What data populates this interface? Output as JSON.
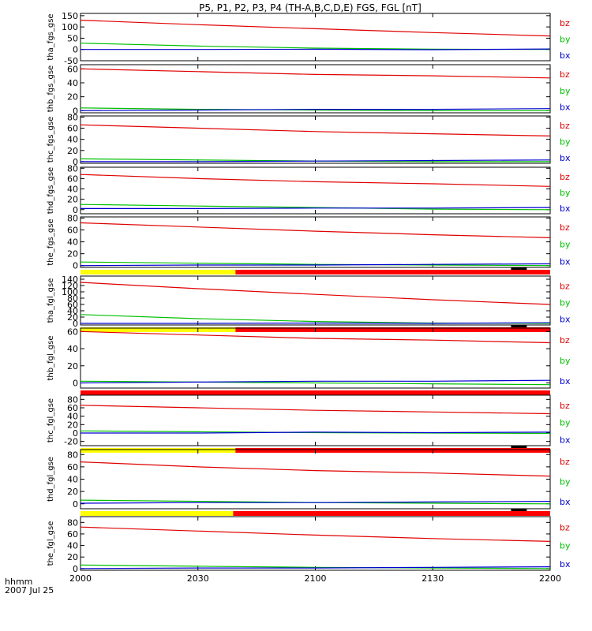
{
  "title": "P5, P1, P2, P3, P4 (TH-A,B,C,D,E) FGS, FGL [nT]",
  "time_axis": {
    "row1_label": "hhmm",
    "row2_label": "2007 Jul 25",
    "tick_labels": [
      "2000",
      "2030",
      "2100",
      "2130",
      "2200"
    ],
    "range_hours": [
      20.0,
      22.0
    ]
  },
  "legend_colors": {
    "bz": "#e00000",
    "by": "#00c000",
    "bx": "#0000d0"
  },
  "mode_colors": {
    "slow": "#ffff00",
    "fast": "#ff0000",
    "marker": "#000000"
  },
  "chart_data": [
    {
      "type": "line",
      "ylabel": "tha_fgs_gse",
      "ylim": [
        -50,
        160
      ],
      "ticks": [
        "-50",
        "0",
        "50",
        "100",
        "150"
      ],
      "tick_values": [
        -50,
        0,
        50,
        100,
        150
      ],
      "legend": [
        "bz",
        "by",
        "bx"
      ],
      "series": [
        {
          "name": "bz",
          "x": [
            20.0,
            20.5,
            21.0,
            21.5,
            22.0
          ],
          "values": [
            130,
            110,
            92,
            75,
            60
          ]
        },
        {
          "name": "by",
          "x": [
            20.0,
            20.5,
            21.0,
            21.5,
            22.0
          ],
          "values": [
            28,
            15,
            6,
            1,
            0
          ]
        },
        {
          "name": "bx",
          "x": [
            20.0,
            20.5,
            21.0,
            21.5,
            22.0
          ],
          "values": [
            0,
            0,
            1,
            -1,
            2
          ]
        }
      ],
      "mode_bar": null
    },
    {
      "type": "line",
      "ylabel": "thb_fgs_gse",
      "ylim": [
        -3,
        66
      ],
      "ticks": [
        "0",
        "20",
        "40",
        "60"
      ],
      "tick_values": [
        0,
        20,
        40,
        60
      ],
      "legend": [
        "bz",
        "by",
        "bx"
      ],
      "series": [
        {
          "name": "bz",
          "x": [
            20.0,
            20.5,
            21.0,
            21.5,
            22.0
          ],
          "values": [
            60,
            56,
            52,
            50,
            47
          ]
        },
        {
          "name": "by",
          "x": [
            20.0,
            20.5,
            21.0,
            21.5,
            22.0
          ],
          "values": [
            4,
            2,
            1,
            0,
            0
          ]
        },
        {
          "name": "bx",
          "x": [
            20.0,
            20.5,
            21.0,
            21.5,
            22.0
          ],
          "values": [
            0,
            1,
            2,
            2,
            3
          ]
        }
      ],
      "mode_bar": null
    },
    {
      "type": "line",
      "ylabel": "thc_fgs_gse",
      "ylim": [
        -3,
        82
      ],
      "ticks": [
        "0",
        "20",
        "40",
        "60",
        "80"
      ],
      "tick_values": [
        0,
        20,
        40,
        60,
        80
      ],
      "legend": [
        "bz",
        "by",
        "bx"
      ],
      "series": [
        {
          "name": "bz",
          "x": [
            20.0,
            20.5,
            21.0,
            21.5,
            22.0
          ],
          "values": [
            66,
            60,
            54,
            50,
            46
          ]
        },
        {
          "name": "by",
          "x": [
            20.0,
            20.5,
            21.0,
            21.5,
            22.0
          ],
          "values": [
            5,
            3,
            1,
            0,
            0
          ]
        },
        {
          "name": "bx",
          "x": [
            20.0,
            20.5,
            21.0,
            21.5,
            22.0
          ],
          "values": [
            0,
            0,
            1,
            2,
            3
          ]
        }
      ],
      "mode_bar": null
    },
    {
      "type": "line",
      "ylabel": "thd_fgs_gse",
      "ylim": [
        -8,
        82
      ],
      "ticks": [
        "0",
        "20",
        "40",
        "60",
        "80"
      ],
      "tick_values": [
        0,
        20,
        40,
        60,
        80
      ],
      "legend": [
        "bz",
        "by",
        "bx"
      ],
      "series": [
        {
          "name": "bz",
          "x": [
            20.0,
            20.5,
            21.0,
            21.5,
            22.0
          ],
          "values": [
            68,
            60,
            54,
            50,
            45
          ]
        },
        {
          "name": "by",
          "x": [
            20.0,
            20.5,
            21.0,
            21.5,
            22.0
          ],
          "values": [
            10,
            7,
            4,
            1,
            0
          ]
        },
        {
          "name": "bx",
          "x": [
            20.0,
            20.5,
            21.0,
            21.5,
            22.0
          ],
          "values": [
            2,
            2,
            3,
            3,
            4
          ]
        }
      ],
      "mode_bar": null
    },
    {
      "type": "line",
      "ylabel": "the_fgs_gse",
      "ylim": [
        -3,
        82
      ],
      "ticks": [
        "0",
        "20",
        "40",
        "60",
        "80"
      ],
      "tick_values": [
        0,
        20,
        40,
        60,
        80
      ],
      "legend": [
        "bz",
        "by",
        "bx"
      ],
      "series": [
        {
          "name": "bz",
          "x": [
            20.0,
            20.5,
            21.0,
            21.5,
            22.0
          ],
          "values": [
            72,
            65,
            58,
            52,
            47
          ]
        },
        {
          "name": "by",
          "x": [
            20.0,
            20.5,
            21.0,
            21.5,
            22.0
          ],
          "values": [
            6,
            4,
            2,
            1,
            0
          ]
        },
        {
          "name": "bx",
          "x": [
            20.0,
            20.5,
            21.0,
            21.5,
            22.0
          ],
          "values": [
            0,
            1,
            1,
            2,
            3
          ]
        }
      ],
      "mode_bar": {
        "slow_until_hours": 20.66,
        "marker_hours": 21.84
      }
    },
    {
      "type": "line",
      "ylabel": "tha_fgl_gse",
      "ylim": [
        -5,
        150
      ],
      "ticks": [
        "0",
        "20",
        "40",
        "60",
        "80",
        "100",
        "120",
        "140"
      ],
      "tick_values": [
        0,
        20,
        40,
        60,
        80,
        100,
        120,
        140
      ],
      "legend": [
        "bz",
        "by",
        "bx"
      ],
      "series": [
        {
          "name": "bz",
          "x": [
            20.0,
            20.5,
            21.0,
            21.5,
            22.0
          ],
          "values": [
            130,
            110,
            92,
            75,
            60
          ]
        },
        {
          "name": "by",
          "x": [
            20.0,
            20.5,
            21.0,
            21.5,
            22.0
          ],
          "values": [
            28,
            15,
            6,
            1,
            0
          ]
        },
        {
          "name": "bx",
          "x": [
            20.0,
            20.5,
            21.0,
            21.5,
            22.0
          ],
          "values": [
            0,
            0,
            1,
            0,
            2
          ]
        }
      ],
      "mode_bar": {
        "slow_until_hours": 20.66,
        "marker_hours": 21.84
      }
    },
    {
      "type": "line",
      "ylabel": "thb_fgl_gse",
      "ylim": [
        -6,
        64
      ],
      "ticks": [
        "0",
        "20",
        "40",
        "60"
      ],
      "tick_values": [
        0,
        20,
        40,
        60
      ],
      "legend": [
        "bz",
        "by",
        "bx"
      ],
      "series": [
        {
          "name": "bz",
          "x": [
            20.0,
            20.5,
            21.0,
            21.5,
            22.0
          ],
          "values": [
            60,
            56,
            52,
            50,
            47
          ]
        },
        {
          "name": "by",
          "x": [
            20.0,
            20.5,
            21.0,
            21.5,
            22.0
          ],
          "values": [
            2,
            1,
            0,
            -1,
            -2
          ]
        },
        {
          "name": "bx",
          "x": [
            20.0,
            20.5,
            21.0,
            21.5,
            22.0
          ],
          "values": [
            0,
            1,
            2,
            2,
            3
          ]
        }
      ],
      "mode_bar": {
        "slow_until_hours": 20.0,
        "marker_hours": null
      }
    },
    {
      "type": "line",
      "ylabel": "thc_fgl_gse",
      "ylim": [
        -30,
        90
      ],
      "ticks": [
        "-20",
        "0",
        "20",
        "40",
        "60",
        "80"
      ],
      "tick_values": [
        -20,
        0,
        20,
        40,
        60,
        80
      ],
      "legend": [
        "bz",
        "by",
        "bx"
      ],
      "series": [
        {
          "name": "bz",
          "x": [
            20.0,
            20.5,
            21.0,
            21.5,
            22.0
          ],
          "values": [
            66,
            60,
            54,
            50,
            46
          ]
        },
        {
          "name": "by",
          "x": [
            20.0,
            20.5,
            21.0,
            21.5,
            22.0
          ],
          "values": [
            5,
            3,
            1,
            0,
            -1
          ]
        },
        {
          "name": "bx",
          "x": [
            20.0,
            20.5,
            21.0,
            21.5,
            22.0
          ],
          "values": [
            0,
            0,
            2,
            1,
            2
          ]
        }
      ],
      "mode_bar": {
        "slow_until_hours": 20.66,
        "marker_hours": 21.84
      }
    },
    {
      "type": "line",
      "ylabel": "thd_fgl_gse",
      "ylim": [
        -8,
        88
      ],
      "ticks": [
        "0",
        "20",
        "40",
        "60",
        "80"
      ],
      "tick_values": [
        0,
        20,
        40,
        60,
        80
      ],
      "legend": [
        "bz",
        "by",
        "bx"
      ],
      "series": [
        {
          "name": "bz",
          "x": [
            20.0,
            20.5,
            21.0,
            21.5,
            22.0
          ],
          "values": [
            68,
            60,
            54,
            50,
            45
          ]
        },
        {
          "name": "by",
          "x": [
            20.0,
            20.5,
            21.0,
            21.5,
            22.0
          ],
          "values": [
            6,
            4,
            2,
            1,
            0
          ]
        },
        {
          "name": "bx",
          "x": [
            20.0,
            20.5,
            21.0,
            21.5,
            22.0
          ],
          "values": [
            1,
            2,
            2,
            3,
            4
          ]
        }
      ],
      "mode_bar": {
        "slow_until_hours": 20.65,
        "marker_hours": 21.84
      }
    },
    {
      "type": "line",
      "ylabel": "the_fgl_gse",
      "ylim": [
        -3,
        90
      ],
      "ticks": [
        "0",
        "20",
        "40",
        "60",
        "80"
      ],
      "tick_values": [
        0,
        20,
        40,
        60,
        80
      ],
      "legend": [
        "bz",
        "by",
        "bx"
      ],
      "series": [
        {
          "name": "bz",
          "x": [
            20.0,
            20.5,
            21.0,
            21.5,
            22.0
          ],
          "values": [
            72,
            65,
            58,
            52,
            47
          ]
        },
        {
          "name": "by",
          "x": [
            20.0,
            20.5,
            21.0,
            21.5,
            22.0
          ],
          "values": [
            6,
            4,
            2,
            1,
            0
          ]
        },
        {
          "name": "bx",
          "x": [
            20.0,
            20.5,
            21.0,
            21.5,
            22.0
          ],
          "values": [
            0,
            1,
            1,
            2,
            3
          ]
        }
      ],
      "mode_bar": null
    }
  ]
}
